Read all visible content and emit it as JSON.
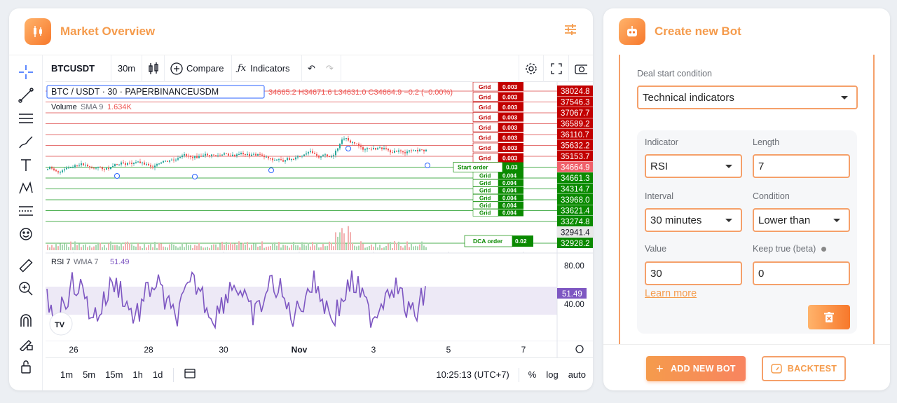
{
  "market": {
    "title": "Market Overview",
    "symbol": "BTCUSDT",
    "interval": "30m",
    "compare": "Compare",
    "indicators": "Indicators",
    "legend_main": "BTC / USDT · 30 · PAPERBINANCEUSDM",
    "ohlc": "34665.2 H34671.6 L34631.0 C34664.9 −0.2 (−0.00%)",
    "volume_label": "Volume",
    "volume_sma": "SMA 9",
    "volume_value": "1.634K",
    "rsi_label": "RSI 7",
    "rsi_wma": "WMA 7",
    "rsi_value": "51.49",
    "rsi_axis": [
      "80.00",
      "40.00"
    ],
    "x_ticks": [
      "26",
      "28",
      "30",
      "Nov",
      "3",
      "5",
      "7"
    ],
    "timeframes": [
      "1m",
      "5m",
      "15m",
      "1h",
      "1d"
    ],
    "clock": "10:25:13 (UTC+7)",
    "scale_opts": [
      "%",
      "log",
      "auto"
    ],
    "grid_label": "Grid",
    "sell_grids": [
      "0.003",
      "0.003",
      "0.003",
      "0.003",
      "0.003",
      "0.003",
      "0.003",
      "0.003"
    ],
    "buy_grids": [
      "0.004",
      "0.004",
      "0.004",
      "0.004",
      "0.004",
      "0.004"
    ],
    "start_order_label": "Start order",
    "start_order_value": "0.03",
    "dca_label": "DCA order",
    "dca_value": "0.02",
    "price_axis_red": [
      "38024.8",
      "37546.3",
      "37067.7",
      "36589.2",
      "36110.7",
      "35632.2",
      "35153.7"
    ],
    "price_current": "34664.9",
    "price_axis_green": [
      "34661.3",
      "34314.7",
      "33968.0",
      "33621.4",
      "33274.8"
    ],
    "price_plain": "32941.4",
    "price_dca": "32928.2",
    "colors": {
      "accent": "#f7913d",
      "sell": "#c20000",
      "buy": "#0a8a00",
      "rsi": "#7e57c2",
      "current": "#f0606a"
    }
  },
  "bot": {
    "title": "Create new Bot",
    "deal_label": "Deal start condition",
    "deal_value": "Technical indicators",
    "indicator_label": "Indicator",
    "indicator_value": "RSI",
    "length_label": "Length",
    "length_value": "7",
    "interval_label": "Interval",
    "interval_value": "30 minutes",
    "condition_label": "Condition",
    "condition_value": "Lower than",
    "value_label": "Value",
    "value_value": "30",
    "keep_label": "Keep true (beta)",
    "keep_value": "0",
    "learn_more": "Learn more",
    "add_button": "ADD NEW BOT",
    "backtest_button": "BACKTEST"
  }
}
